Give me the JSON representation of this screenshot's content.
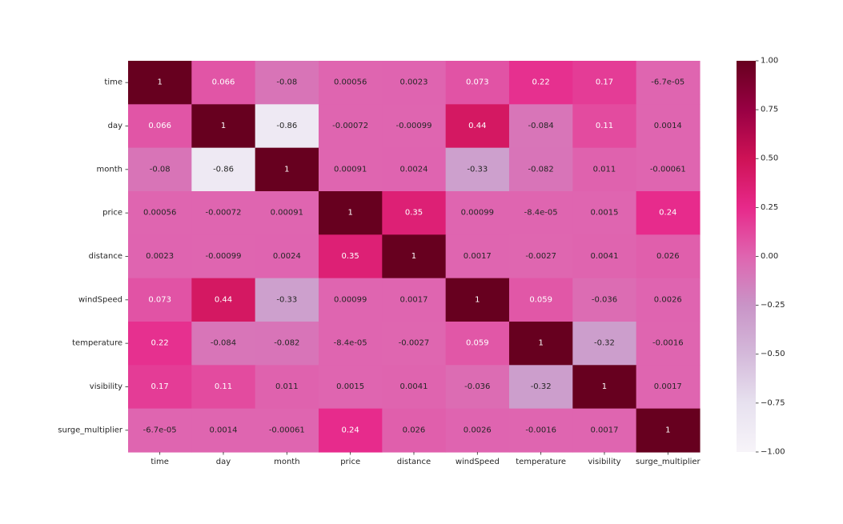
{
  "chart_data": {
    "type": "heatmap",
    "title": "",
    "xlabel": "",
    "ylabel": "",
    "x_categories": [
      "time",
      "day",
      "month",
      "price",
      "distance",
      "windSpeed",
      "temperature",
      "visibility",
      "surge_multiplier"
    ],
    "y_categories": [
      "time",
      "day",
      "month",
      "price",
      "distance",
      "windSpeed",
      "temperature",
      "visibility",
      "surge_multiplier"
    ],
    "values": [
      [
        1,
        0.066,
        -0.08,
        0.00056,
        0.0023,
        0.073,
        0.22,
        0.17,
        -6.7e-05
      ],
      [
        0.066,
        1,
        -0.86,
        -0.00072,
        -0.00099,
        0.44,
        -0.084,
        0.11,
        0.0014
      ],
      [
        -0.08,
        -0.86,
        1,
        0.00091,
        0.0024,
        -0.33,
        -0.082,
        0.011,
        -0.00061
      ],
      [
        0.00056,
        -0.00072,
        0.00091,
        1,
        0.35,
        0.00099,
        -8.4e-05,
        0.0015,
        0.24
      ],
      [
        0.0023,
        -0.00099,
        0.0024,
        0.35,
        1,
        0.0017,
        -0.0027,
        0.0041,
        0.026
      ],
      [
        0.073,
        0.44,
        -0.33,
        0.00099,
        0.0017,
        1,
        0.059,
        -0.036,
        0.0026
      ],
      [
        0.22,
        -0.084,
        -0.082,
        -8.4e-05,
        -0.0027,
        0.059,
        1,
        -0.32,
        -0.0016
      ],
      [
        0.17,
        0.11,
        0.011,
        0.0015,
        0.0041,
        -0.036,
        -0.32,
        1,
        0.0017
      ],
      [
        -6.7e-05,
        0.0014,
        -0.00061,
        0.24,
        0.026,
        0.0026,
        -0.0016,
        0.0017,
        1
      ]
    ],
    "annotations": [
      [
        "1",
        "0.066",
        "-0.08",
        "0.00056",
        "0.0023",
        "0.073",
        "0.22",
        "0.17",
        "-6.7e-05"
      ],
      [
        "0.066",
        "1",
        "-0.86",
        "-0.00072",
        "-0.00099",
        "0.44",
        "-0.084",
        "0.11",
        "0.0014"
      ],
      [
        "-0.08",
        "-0.86",
        "1",
        "0.00091",
        "0.0024",
        "-0.33",
        "-0.082",
        "0.011",
        "-0.00061"
      ],
      [
        "0.00056",
        "-0.00072",
        "0.00091",
        "1",
        "0.35",
        "0.00099",
        "-8.4e-05",
        "0.0015",
        "0.24"
      ],
      [
        "0.0023",
        "-0.00099",
        "0.0024",
        "0.35",
        "1",
        "0.0017",
        "-0.0027",
        "0.0041",
        "0.026"
      ],
      [
        "0.073",
        "0.44",
        "-0.33",
        "0.00099",
        "0.0017",
        "1",
        "0.059",
        "-0.036",
        "0.0026"
      ],
      [
        "0.22",
        "-0.084",
        "-0.082",
        "-8.4e-05",
        "-0.0027",
        "0.059",
        "1",
        "-0.32",
        "-0.0016"
      ],
      [
        "0.17",
        "0.11",
        "0.011",
        "0.0015",
        "0.0041",
        "-0.036",
        "-0.32",
        "1",
        "0.0017"
      ],
      [
        "-6.7e-05",
        "0.0014",
        "-0.00061",
        "0.24",
        "0.026",
        "0.0026",
        "-0.0016",
        "0.0017",
        "1"
      ]
    ],
    "vmin": -1.0,
    "vmax": 1.0,
    "colormap": "PuRd",
    "colorbar_ticks": [
      "1.00",
      "0.75",
      "0.50",
      "0.25",
      "0.00",
      "−0.25",
      "−0.50",
      "−0.75",
      "−1.00"
    ],
    "colorbar_tick_values": [
      1.0,
      0.75,
      0.5,
      0.25,
      0.0,
      -0.25,
      -0.5,
      -0.75,
      -1.0
    ],
    "legend": "right"
  }
}
